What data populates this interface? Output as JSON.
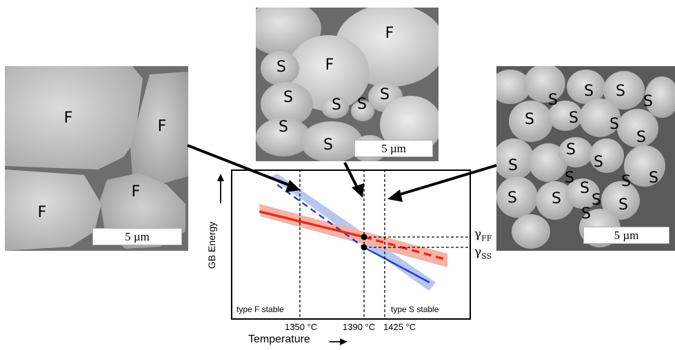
{
  "scale_bar_text": "5 µm",
  "grain_labels": {
    "left": [
      "F",
      "F",
      "F",
      "F"
    ],
    "middle": [
      "F",
      "F",
      "S",
      "S",
      "S",
      "S",
      "S",
      "S",
      "S"
    ],
    "right": [
      "S",
      "S",
      "S",
      "S",
      "S",
      "S",
      "S",
      "S",
      "S",
      "S",
      "S",
      "S",
      "S",
      "S",
      "S",
      "S",
      "S",
      "S",
      "S",
      "S"
    ]
  },
  "diagram": {
    "y_label": "GB Energy",
    "x_label": "Temperature",
    "x_ticks": [
      "1350 °C",
      "1390 °C",
      "1425 °C"
    ],
    "region_left": "type F stable",
    "region_right": "type S stable",
    "gamma_ff_symbol": "γ",
    "gamma_ff_sub": "FF",
    "gamma_ss_symbol": "γ",
    "gamma_ss_sub": "SS"
  },
  "colors": {
    "type_f_line": "#1e3fd8",
    "type_f_band": "#b9c6ee",
    "type_s_line": "#ee2a16",
    "type_s_band": "#f6b2a6"
  }
}
